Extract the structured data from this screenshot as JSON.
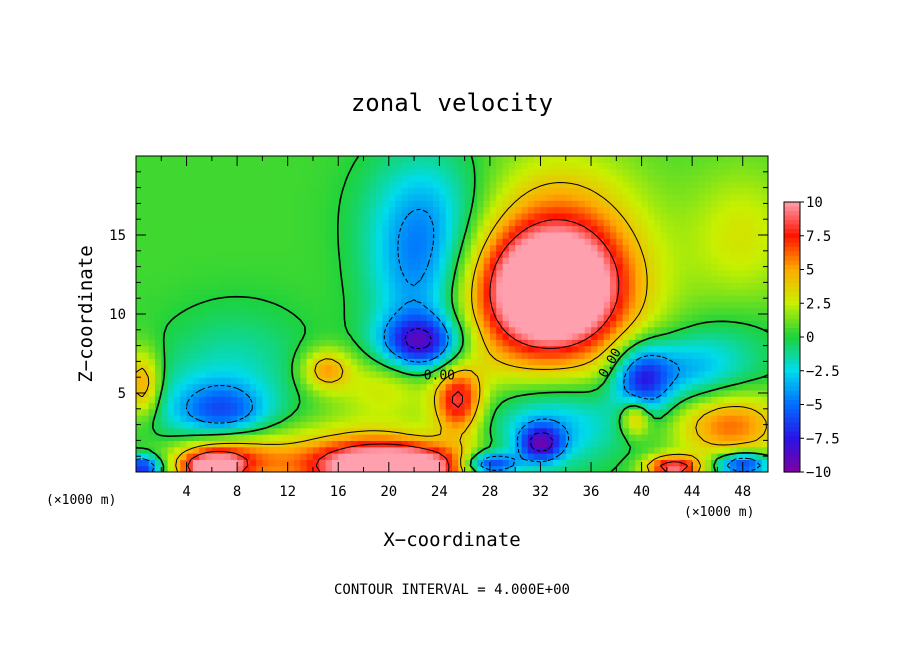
{
  "chart_data": {
    "type": "heatmap",
    "title": "zonal velocity",
    "xlabel": "X−coordinate",
    "ylabel": "Z−coordinate",
    "x_unit_left": "(×1000 m)",
    "x_unit_right": "(×1000 m)",
    "footer": "CONTOUR INTERVAL = 4.000E+00",
    "xlim": [
      0,
      50
    ],
    "ylim": [
      0,
      20
    ],
    "xticks": [
      4,
      8,
      12,
      16,
      20,
      24,
      28,
      32,
      36,
      40,
      44,
      48
    ],
    "yticks": [
      5,
      10,
      15
    ],
    "colorbar": {
      "range": [
        -10,
        10
      ],
      "ticks": [
        10,
        7.5,
        5,
        2.5,
        0,
        -2.5,
        -5,
        -7.5,
        -10
      ],
      "tick_labels": [
        "10",
        "7.5",
        "5",
        "2.5",
        "0",
        "−2.5",
        "−5",
        "−7.5",
        "−10"
      ]
    },
    "contour_labels": [
      {
        "text": "0.00",
        "x": 24,
        "y": 6.1
      },
      {
        "text": "0.00",
        "x": 37.5,
        "y": 6.9
      }
    ],
    "field_features": [
      {
        "value": 9,
        "x": 33,
        "y": 11.5,
        "sx": 3.5,
        "sy": 2.4
      },
      {
        "value": 6.5,
        "x": 32,
        "y": 11.5,
        "sx": 5.5,
        "sy": 4.5
      },
      {
        "value": 3,
        "x": 34,
        "y": 14,
        "sx": 4,
        "sy": 4
      },
      {
        "value": -8.5,
        "x": 22.5,
        "y": 8.2,
        "sx": 2.2,
        "sy": 1.2
      },
      {
        "value": -5.5,
        "x": 22.5,
        "y": 12.5,
        "sx": 2.8,
        "sy": 4
      },
      {
        "value": -2.5,
        "x": 24,
        "y": 16.5,
        "sx": 4,
        "sy": 3
      },
      {
        "value": -5,
        "x": 7,
        "y": 3.7,
        "sx": 2.5,
        "sy": 1.3
      },
      {
        "value": 5,
        "x": 15,
        "y": 6.5,
        "sx": 1.3,
        "sy": 0.9
      },
      {
        "value": 8,
        "x": 25.5,
        "y": 4.5,
        "sx": 1.3,
        "sy": 1.5
      },
      {
        "value": 10,
        "x": 21,
        "y": 0.3,
        "sx": 3.5,
        "sy": 0.9
      },
      {
        "value": 8,
        "x": 18,
        "y": 0.5,
        "sx": 5,
        "sy": 1.5
      },
      {
        "value": 10,
        "x": 6,
        "y": 0.3,
        "sx": 1.5,
        "sy": 0.6
      },
      {
        "value": 7,
        "x": 7,
        "y": 1.0,
        "sx": 3,
        "sy": 1.2
      },
      {
        "value": -8,
        "x": 32,
        "y": 1.8,
        "sx": 1.2,
        "sy": 0.8
      },
      {
        "value": -5,
        "x": 33,
        "y": 3.2,
        "sx": 4,
        "sy": 2
      },
      {
        "value": -7,
        "x": 40,
        "y": 5.8,
        "sx": 1.5,
        "sy": 1.5
      },
      {
        "value": -4,
        "x": 43,
        "y": 6.5,
        "sx": 3,
        "sy": 1.5
      },
      {
        "value": 6,
        "x": 39.5,
        "y": 3.5,
        "sx": 0.8,
        "sy": 0.8
      },
      {
        "value": 10,
        "x": 42.5,
        "y": 0.3,
        "sx": 1.5,
        "sy": 0.5
      },
      {
        "value": 6,
        "x": 47,
        "y": 3.0,
        "sx": 3,
        "sy": 1.5
      },
      {
        "value": 6,
        "x": 0.5,
        "y": 5.5,
        "sx": 1,
        "sy": 1.5
      },
      {
        "value": 3,
        "x": 20,
        "y": 5.5,
        "sx": 3,
        "sy": 1.5
      },
      {
        "value": -9,
        "x": 0.5,
        "y": 0.3,
        "sx": 1,
        "sy": 0.5
      },
      {
        "value": -9,
        "x": 48,
        "y": 0.5,
        "sx": 1.5,
        "sy": 0.5
      },
      {
        "value": -9,
        "x": 28,
        "y": 0.5,
        "sx": 1.5,
        "sy": 0.5
      },
      {
        "value": -2,
        "x": 4,
        "y": 4,
        "sx": 4,
        "sy": 2
      },
      {
        "value": 2.5,
        "x": 48,
        "y": 15,
        "sx": 3,
        "sy": 3
      },
      {
        "value": -2,
        "x": 8,
        "y": 7,
        "sx": 4,
        "sy": 2.5
      },
      {
        "value": -1.5,
        "x": 47,
        "y": 7.5,
        "sx": 3,
        "sy": 2
      }
    ]
  }
}
